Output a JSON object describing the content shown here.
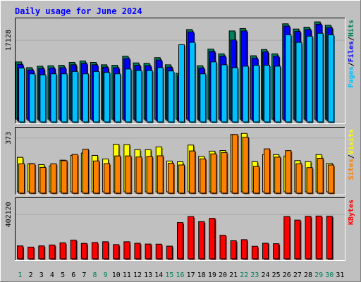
{
  "chart_data": {
    "title": "Daily usage for June 2024",
    "days": [
      "1",
      "2",
      "3",
      "4",
      "5",
      "6",
      "7",
      "8",
      "9",
      "10",
      "11",
      "12",
      "13",
      "14",
      "15",
      "16",
      "17",
      "18",
      "19",
      "20",
      "21",
      "22",
      "23",
      "24",
      "25",
      "26",
      "27",
      "28",
      "29",
      "30",
      "31"
    ],
    "weekend_days": [
      1,
      8,
      9,
      15,
      16,
      22,
      23,
      29,
      30
    ],
    "panels": [
      {
        "type": "bar",
        "tick_label": "17128",
        "ylim": [
          0,
          21000
        ],
        "tick_value": 17128,
        "legend": [
          {
            "label": "Pages",
            "color": "#00c0ff"
          },
          {
            "sep": "/"
          },
          {
            "label": "Files",
            "color": "#0000ff"
          },
          {
            "sep": "/"
          },
          {
            "label": "Hits",
            "color": "#00805c"
          }
        ],
        "series": [
          {
            "key": "hits",
            "color": "#00805c",
            "values": [
              12000,
              10800,
              11100,
              11200,
              11300,
              11900,
              12200,
              11900,
              11400,
              11300,
              13200,
              11800,
              11700,
              12900,
              11400,
              9600,
              18800,
              11200,
              14700,
              13700,
              18500,
              19000,
              13300,
              14600,
              13700,
              20000,
              18900,
              19300,
              20400,
              19700,
              0
            ]
          },
          {
            "key": "files",
            "color": "#0000ff",
            "values": [
              11800,
              10600,
              10900,
              11000,
              11100,
              11700,
              12000,
              11700,
              11200,
              11100,
              13000,
              11600,
              11500,
              12700,
              11200,
              9400,
              18600,
              11000,
              14500,
              13500,
              16900,
              18800,
              13100,
              14400,
              13500,
              19800,
              18700,
              19100,
              20200,
              19500,
              0
            ]
          },
          {
            "key": "pages",
            "color": "#00c0ff",
            "values": [
              11300,
              10100,
              9900,
              10100,
              10100,
              10600,
              10100,
              10600,
              10400,
              10100,
              11100,
              10800,
              10800,
              11400,
              10700,
              16200,
              16700,
              10100,
              12600,
              12000,
              11400,
              11700,
              11900,
              11900,
              11700,
              18300,
              16700,
              18000,
              18600,
              18300,
              0
            ]
          }
        ]
      },
      {
        "type": "bar",
        "tick_label": "373",
        "ylim": [
          0,
          420
        ],
        "tick_value": 373,
        "legend": [
          {
            "label": "Sites",
            "color": "#ff8000"
          },
          {
            "sep": "/"
          },
          {
            "label": "Visits",
            "color": "#ffff00"
          }
        ],
        "series": [
          {
            "key": "visits",
            "color": "#ffff00",
            "values": [
              233,
              190,
              184,
              175,
              214,
              246,
              262,
              246,
              222,
              322,
              319,
              285,
              285,
              304,
              208,
              203,
              316,
              240,
              275,
              279,
              387,
              395,
              204,
              252,
              252,
              242,
              211,
              204,
              252,
              192,
              0
            ]
          },
          {
            "key": "sites",
            "color": "#ff8000",
            "values": [
              199,
              198,
              175,
              199,
              220,
              262,
              298,
              218,
              200,
              252,
              252,
              245,
              249,
              253,
              202,
              191,
              286,
              232,
              266,
              275,
              397,
              379,
              181,
              300,
              244,
              288,
              199,
              173,
              236,
              191,
              0
            ]
          }
        ]
      },
      {
        "type": "bar",
        "tick_label": "402120",
        "ylim": [
          0,
          520000
        ],
        "tick_value": 402120,
        "legend": [
          {
            "label": "KBytes",
            "color": "#ff0000"
          }
        ],
        "series": [
          {
            "key": "kbytes",
            "color": "#ff0000",
            "values": [
              117000,
              106000,
              117000,
              125000,
              145000,
              170000,
              140000,
              148000,
              155000,
              129000,
              155000,
              141000,
              134000,
              133000,
              115000,
              330000,
              384000,
              338000,
              368000,
              214000,
              164000,
              174000,
              114000,
              141000,
              137000,
              384000,
              352000,
              386000,
              389000,
              387000,
              0
            ]
          }
        ]
      }
    ]
  }
}
